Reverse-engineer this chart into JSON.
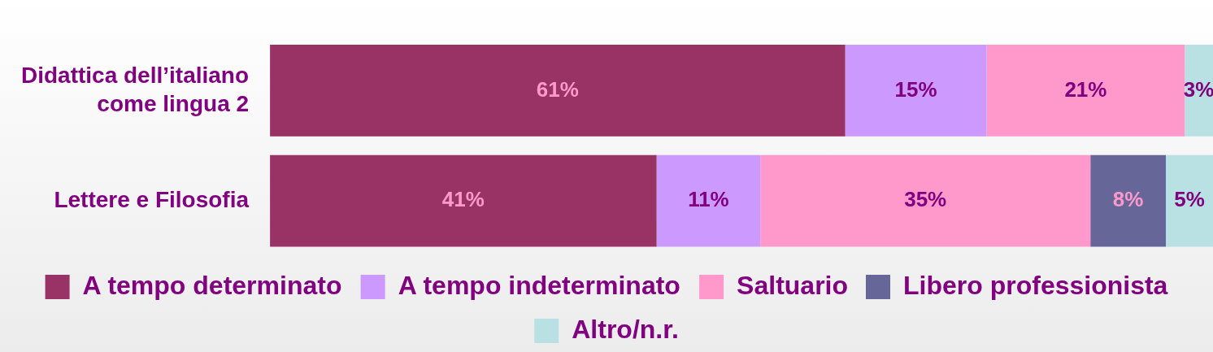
{
  "chart_data": {
    "type": "bar",
    "orientation": "horizontal",
    "stacked": true,
    "categories": [
      "Didattica dell’italiano come lingua 2",
      "Lettere e Filosofia"
    ],
    "xlim": [
      0,
      100
    ],
    "tick_labels": "y",
    "grid": false,
    "legend": "bottom",
    "series": [
      {
        "name": "A tempo determinato",
        "color": "#993366",
        "values": [
          61,
          41
        ],
        "value_labels": [
          "61%",
          "41%"
        ]
      },
      {
        "name": "A tempo indeterminato",
        "color": "#cc99ff",
        "values": [
          15,
          11
        ],
        "value_labels": [
          "15%",
          "11%"
        ]
      },
      {
        "name": "Saltuario",
        "color": "#ff99cc",
        "values": [
          21,
          35
        ],
        "value_labels": [
          "21%",
          "35%"
        ]
      },
      {
        "name": "Libero professionista",
        "color": "#666699",
        "values": [
          null,
          8
        ],
        "value_labels": [
          null,
          "8%"
        ]
      },
      {
        "name": "Altro/n.r.",
        "color": "#b9e0e2",
        "values": [
          3,
          5
        ],
        "value_labels": [
          "3%",
          "5%"
        ]
      }
    ]
  }
}
